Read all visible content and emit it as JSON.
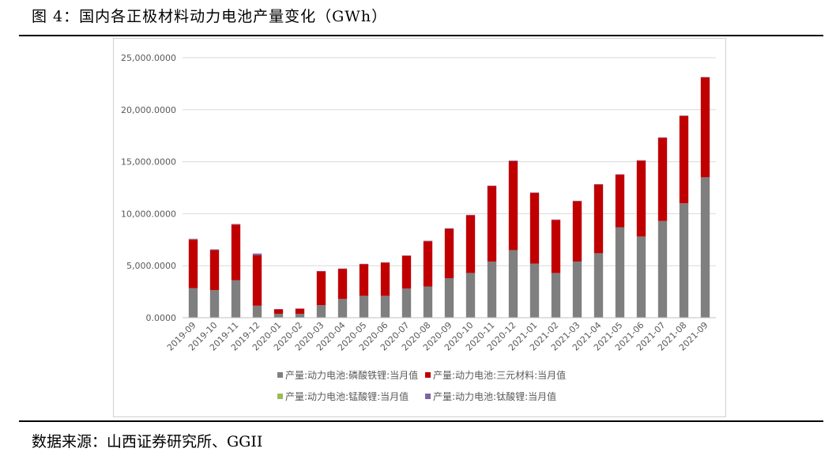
{
  "figure": {
    "title": "图 4：国内各正极材料动力电池产量变化（GWh）",
    "source": "数据来源：山西证券研究所、GGII"
  },
  "chart_data": {
    "type": "bar",
    "stacked": true,
    "categories": [
      "2019-09",
      "2019-10",
      "2019-11",
      "2019-12",
      "2020-01",
      "2020-02",
      "2020-03",
      "2020-04",
      "2020-05",
      "2020-06",
      "2020-07",
      "2020-08",
      "2020-09",
      "2020-10",
      "2020-11",
      "2020-12",
      "2021-01",
      "2021-02",
      "2021-03",
      "2021-04",
      "2021-05",
      "2021-06",
      "2021-07",
      "2021-08",
      "2021-09"
    ],
    "series": [
      {
        "name": "产量:动力电池:磷酸铁锂:当月值",
        "color": "#7f7f7f",
        "values": [
          2850,
          2650,
          3600,
          1150,
          380,
          380,
          1200,
          1800,
          2100,
          2100,
          2800,
          3000,
          3800,
          4300,
          5400,
          6500,
          5200,
          4300,
          5400,
          6200,
          8700,
          7800,
          9300,
          11000,
          13500
        ]
      },
      {
        "name": "产量:动力电池:三元材料:当月值",
        "color": "#c00000",
        "values": [
          4650,
          3850,
          5350,
          4850,
          420,
          480,
          3250,
          2900,
          3050,
          3200,
          3150,
          4350,
          4750,
          5550,
          7250,
          8550,
          6800,
          5100,
          5800,
          6600,
          5050,
          7300,
          8000,
          8400,
          9600
        ]
      },
      {
        "name": "产量:动力电池:锰酸锂:当月值",
        "color": "#9bbb59",
        "values": [
          0,
          0,
          0,
          0,
          0,
          0,
          0,
          0,
          0,
          0,
          0,
          0,
          0,
          0,
          0,
          0,
          0,
          0,
          0,
          0,
          0,
          0,
          0,
          0,
          0
        ]
      },
      {
        "name": "产量:动力电池:钛酸锂:当月值",
        "color": "#8064a2",
        "values": [
          80,
          70,
          60,
          170,
          30,
          30,
          40,
          30,
          30,
          30,
          40,
          50,
          40,
          40,
          50,
          60,
          40,
          40,
          40,
          40,
          40,
          40,
          40,
          40,
          40
        ]
      }
    ],
    "ylim": [
      0,
      25000
    ],
    "yticks": [
      0,
      5000,
      10000,
      15000,
      20000,
      25000
    ],
    "ytick_labels": [
      "0.0000",
      "5,000.0000",
      "10,000.0000",
      "15,000.0000",
      "20,000.0000",
      "25,000.0000"
    ],
    "grid": true,
    "legend_position": "bottom"
  }
}
